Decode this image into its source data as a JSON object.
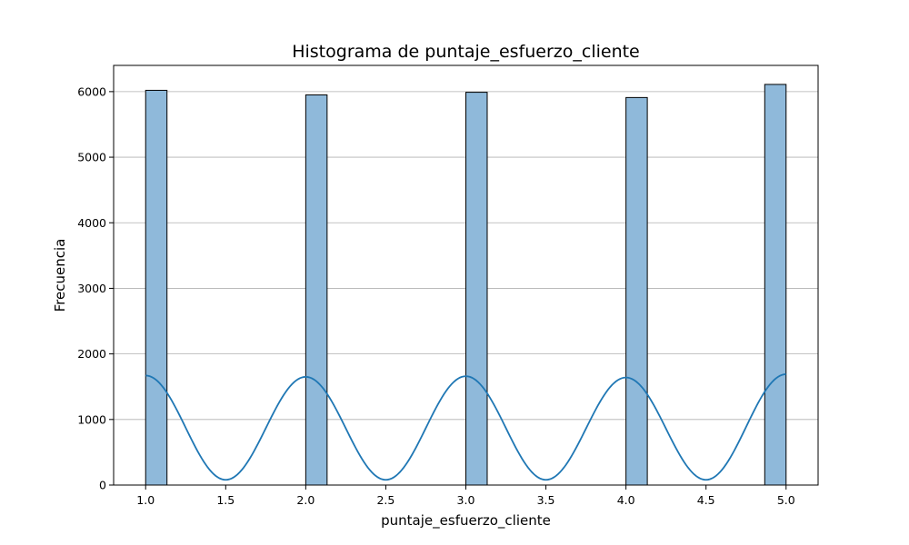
{
  "chart_data": {
    "type": "bar",
    "title": "Histograma de puntaje_esfuerzo_cliente",
    "xlabel": "puntaje_esfuerzo_cliente",
    "ylabel": "Frecuencia",
    "xlim": [
      0.8,
      5.2
    ],
    "ylim": [
      0,
      6400
    ],
    "xticks": [
      "1.0",
      "1.5",
      "2.0",
      "2.5",
      "3.0",
      "3.5",
      "4.0",
      "4.5",
      "5.0"
    ],
    "yticks": [
      "0",
      "1000",
      "2000",
      "3000",
      "4000",
      "5000",
      "6000"
    ],
    "grid": "y",
    "bars": [
      {
        "x_start": 1.0,
        "x_end": 1.1333,
        "value": 6020
      },
      {
        "x_start": 2.0,
        "x_end": 2.1333,
        "value": 5950
      },
      {
        "x_start": 3.0,
        "x_end": 3.1333,
        "value": 5990
      },
      {
        "x_start": 4.0,
        "x_end": 4.1333,
        "value": 5910
      },
      {
        "x_start": 4.8667,
        "x_end": 5.0,
        "value": 6110
      }
    ],
    "kde_line": {
      "peaks": [
        {
          "x": 1.0,
          "y": 1670
        },
        {
          "x": 2.0,
          "y": 1650
        },
        {
          "x": 3.0,
          "y": 1660
        },
        {
          "x": 4.0,
          "y": 1640
        },
        {
          "x": 5.0,
          "y": 1690
        }
      ],
      "troughs": [
        {
          "x": 1.5,
          "y": 80
        },
        {
          "x": 2.5,
          "y": 80
        },
        {
          "x": 3.5,
          "y": 80
        },
        {
          "x": 4.5,
          "y": 80
        }
      ]
    },
    "colors": {
      "bar": "#8fb9da",
      "line": "#1f77b4",
      "grid": "#b0b0b0"
    }
  }
}
